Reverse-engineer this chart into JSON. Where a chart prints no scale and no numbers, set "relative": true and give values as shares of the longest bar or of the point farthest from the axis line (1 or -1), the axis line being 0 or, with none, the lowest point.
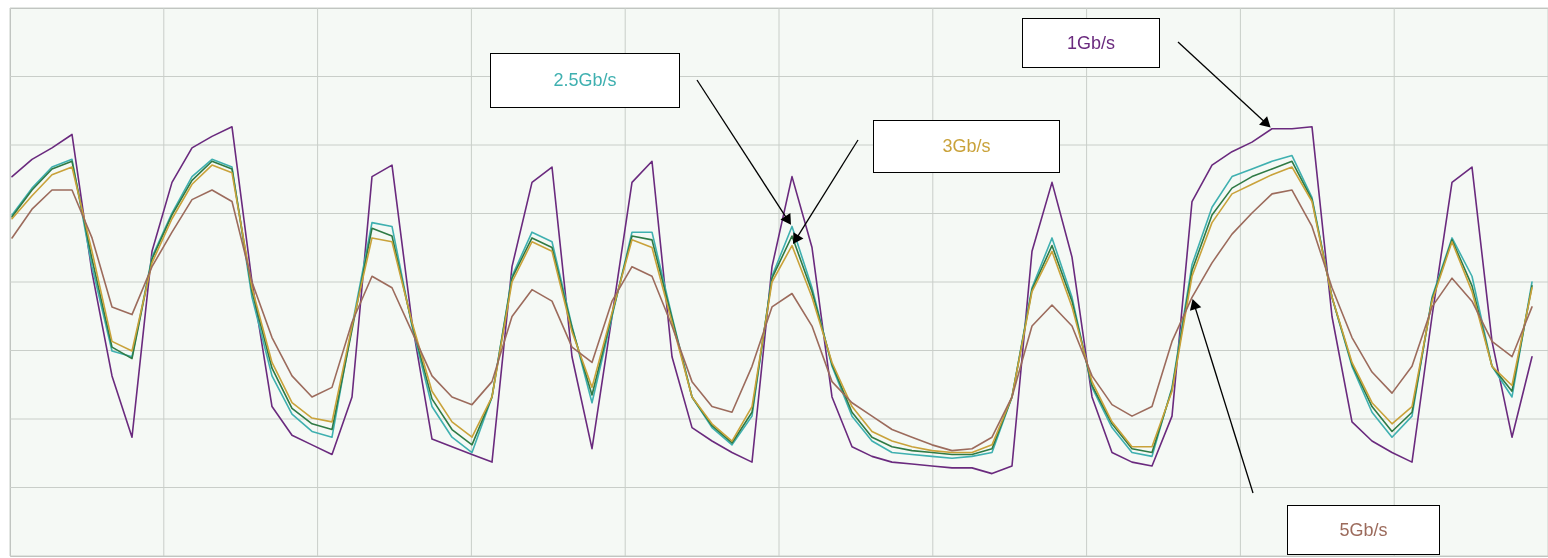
{
  "chart_data": {
    "type": "line",
    "relative": true,
    "grid": true,
    "categories": [
      null,
      null,
      null,
      null,
      null,
      null,
      null,
      null,
      null,
      null,
      null,
      null,
      null,
      null,
      null,
      null,
      null,
      null,
      null,
      null,
      null,
      null,
      null,
      null,
      null,
      null,
      null,
      null,
      null,
      null,
      null,
      null,
      null,
      null,
      null,
      null,
      null,
      null,
      null,
      null,
      null,
      null,
      null,
      null,
      null,
      null,
      null,
      null,
      null,
      null,
      null,
      null,
      null,
      null,
      null,
      null,
      null,
      null,
      null,
      null,
      null,
      null,
      null,
      null,
      null,
      null,
      null,
      null,
      null,
      null,
      null,
      null,
      null,
      null,
      null,
      null,
      null
    ],
    "series": [
      {
        "name": "1Gb/s",
        "color": "#6a2a7e",
        "values": [
          0.55,
          0.64,
          0.7,
          0.77,
          0.05,
          -0.49,
          -0.81,
          0.16,
          0.52,
          0.7,
          0.76,
          0.81,
          0,
          -0.65,
          -0.8,
          -0.85,
          -0.9,
          -0.6,
          0.55,
          0.61,
          -0.21,
          -0.82,
          -0.86,
          -0.9,
          -0.94,
          0.08,
          0.52,
          0.6,
          -0.39,
          -0.87,
          -0.18,
          0.52,
          0.63,
          -0.39,
          -0.76,
          -0.83,
          -0.89,
          -0.94,
          0.08,
          0.55,
          0.18,
          -0.6,
          -0.86,
          -0.91,
          -0.94,
          -0.95,
          -0.96,
          -0.97,
          -0.97,
          -1.0,
          -0.96,
          0.16,
          0.52,
          0.13,
          -0.6,
          -0.89,
          -0.94,
          -0.96,
          -0.7,
          0.42,
          0.61,
          0.68,
          0.73,
          0.8,
          0.8,
          0.81,
          -0.18,
          -0.73,
          -0.83,
          -0.89,
          -0.94,
          -0.18,
          0.52,
          0.6,
          -0.31,
          -0.81,
          -0.39
        ]
      },
      {
        "name": "2.5Gb/s",
        "color": "#3fb0b0",
        "values": [
          0.35,
          0.49,
          0.6,
          0.64,
          0.08,
          -0.36,
          -0.39,
          0.13,
          0.36,
          0.55,
          0.64,
          0.6,
          -0.08,
          -0.49,
          -0.69,
          -0.78,
          -0.81,
          -0.23,
          0.31,
          0.29,
          -0.23,
          -0.65,
          -0.81,
          -0.89,
          -0.6,
          0.03,
          0.26,
          0.21,
          -0.23,
          -0.63,
          -0.18,
          0.26,
          0.26,
          -0.18,
          -0.6,
          -0.76,
          -0.85,
          -0.7,
          0.03,
          0.29,
          -0.03,
          -0.44,
          -0.7,
          -0.83,
          -0.89,
          -0.9,
          -0.91,
          -0.92,
          -0.91,
          -0.89,
          -0.6,
          -0.03,
          0.23,
          -0.08,
          -0.55,
          -0.76,
          -0.89,
          -0.91,
          -0.55,
          0.09,
          0.39,
          0.55,
          0.59,
          0.63,
          0.66,
          0.44,
          -0.08,
          -0.44,
          -0.68,
          -0.81,
          -0.7,
          -0.08,
          0.23,
          0.03,
          -0.44,
          -0.6,
          0
        ]
      },
      {
        "color": "#2f7a45",
        "values": [
          0.34,
          0.48,
          0.59,
          0.63,
          0.12,
          -0.34,
          -0.4,
          0.12,
          0.35,
          0.53,
          0.63,
          0.59,
          -0.05,
          -0.45,
          -0.66,
          -0.74,
          -0.77,
          -0.25,
          0.28,
          0.24,
          -0.22,
          -0.61,
          -0.77,
          -0.85,
          -0.6,
          0.02,
          0.23,
          0.18,
          -0.24,
          -0.59,
          -0.17,
          0.24,
          0.22,
          -0.19,
          -0.6,
          -0.75,
          -0.84,
          -0.68,
          0.02,
          0.24,
          -0.05,
          -0.43,
          -0.68,
          -0.81,
          -0.86,
          -0.88,
          -0.89,
          -0.9,
          -0.9,
          -0.87,
          -0.6,
          -0.04,
          0.19,
          -0.1,
          -0.54,
          -0.74,
          -0.87,
          -0.89,
          -0.56,
          0.06,
          0.35,
          0.49,
          0.55,
          0.59,
          0.63,
          0.43,
          -0.08,
          -0.43,
          -0.65,
          -0.78,
          -0.68,
          -0.09,
          0.22,
          -0.02,
          -0.44,
          -0.57,
          -0.02
        ]
      },
      {
        "name": "3Gb/s",
        "color": "#c9a23a",
        "values": [
          0.33,
          0.45,
          0.56,
          0.6,
          0.16,
          -0.31,
          -0.36,
          0.1,
          0.33,
          0.51,
          0.61,
          0.57,
          -0.03,
          -0.42,
          -0.63,
          -0.71,
          -0.73,
          -0.23,
          0.23,
          0.21,
          -0.21,
          -0.57,
          -0.73,
          -0.81,
          -0.6,
          0,
          0.21,
          0.16,
          -0.26,
          -0.55,
          -0.16,
          0.22,
          0.18,
          -0.21,
          -0.6,
          -0.74,
          -0.83,
          -0.65,
          0,
          0.19,
          -0.08,
          -0.42,
          -0.65,
          -0.78,
          -0.83,
          -0.86,
          -0.88,
          -0.89,
          -0.89,
          -0.85,
          -0.6,
          -0.05,
          0.16,
          -0.13,
          -0.52,
          -0.73,
          -0.86,
          -0.86,
          -0.57,
          0.03,
          0.31,
          0.46,
          0.51,
          0.56,
          0.6,
          0.42,
          -0.08,
          -0.42,
          -0.63,
          -0.74,
          -0.65,
          -0.1,
          0.21,
          -0.05,
          -0.44,
          -0.54,
          -0.03
        ]
      },
      {
        "name": "5Gb/s",
        "color": "#9c6b5c",
        "values": [
          0.23,
          0.38,
          0.48,
          0.48,
          0.23,
          -0.13,
          -0.17,
          0.08,
          0.26,
          0.43,
          0.48,
          0.42,
          0,
          -0.29,
          -0.49,
          -0.6,
          -0.55,
          -0.21,
          0.03,
          -0.03,
          -0.26,
          -0.49,
          -0.6,
          -0.64,
          -0.52,
          -0.18,
          -0.04,
          -0.1,
          -0.34,
          -0.42,
          -0.1,
          0.08,
          0.03,
          -0.23,
          -0.52,
          -0.65,
          -0.68,
          -0.44,
          -0.13,
          -0.06,
          -0.23,
          -0.52,
          -0.63,
          -0.7,
          -0.77,
          -0.81,
          -0.85,
          -0.88,
          -0.87,
          -0.81,
          -0.6,
          -0.23,
          -0.12,
          -0.23,
          -0.49,
          -0.64,
          -0.7,
          -0.65,
          -0.31,
          -0.08,
          0.1,
          0.25,
          0.36,
          0.46,
          0.48,
          0.29,
          -0.03,
          -0.29,
          -0.47,
          -0.58,
          -0.44,
          -0.13,
          0.02,
          -0.1,
          -0.31,
          -0.39,
          -0.13
        ]
      }
    ]
  }
}
